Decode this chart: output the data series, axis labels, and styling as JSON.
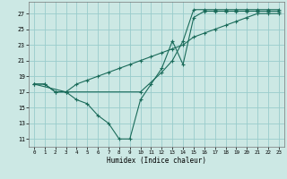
{
  "bg_color": "#cce8e4",
  "grid_color": "#99cccc",
  "line_color": "#1a6b5a",
  "xlim": [
    -0.5,
    23.5
  ],
  "ylim": [
    10.0,
    28.5
  ],
  "ytick_vals": [
    11,
    13,
    15,
    17,
    19,
    21,
    23,
    25,
    27
  ],
  "xtick_vals": [
    0,
    1,
    2,
    3,
    4,
    5,
    6,
    7,
    8,
    9,
    10,
    11,
    12,
    13,
    14,
    15,
    16,
    17,
    18,
    19,
    20,
    21,
    22,
    23
  ],
  "xlabel": "Humidex (Indice chaleur)",
  "curve1_x": [
    0,
    1,
    2,
    3,
    4,
    5,
    6,
    7,
    8,
    9,
    10,
    11,
    12,
    13,
    14,
    15,
    16,
    17,
    18,
    19,
    20,
    21,
    22,
    23
  ],
  "curve1_y": [
    18,
    18,
    17,
    17,
    16,
    15.5,
    14,
    13,
    11,
    11,
    16,
    18,
    20,
    23.5,
    20.5,
    26.5,
    27.3,
    27.3,
    27.3,
    27.3,
    27.3,
    27.3,
    27.3,
    27.3
  ],
  "curve2_x": [
    0,
    1,
    2,
    3,
    4,
    5,
    6,
    7,
    8,
    9,
    10,
    11,
    12,
    13,
    14,
    15,
    16,
    17,
    18,
    19,
    20,
    21,
    22,
    23
  ],
  "curve2_y": [
    18,
    18,
    17,
    17,
    18,
    18.5,
    19,
    19.5,
    20,
    20.5,
    21,
    21.5,
    22,
    22.5,
    23,
    24,
    24.5,
    25,
    25.5,
    26,
    26.5,
    27,
    27,
    27
  ],
  "curve3_x": [
    0,
    3,
    10,
    12,
    13,
    14,
    15,
    16,
    17,
    18,
    19,
    20,
    21,
    22,
    23
  ],
  "curve3_y": [
    18,
    17,
    17,
    19.5,
    21,
    23.5,
    27.5,
    27.5,
    27.5,
    27.5,
    27.5,
    27.5,
    27.5,
    27.5,
    27.5
  ]
}
